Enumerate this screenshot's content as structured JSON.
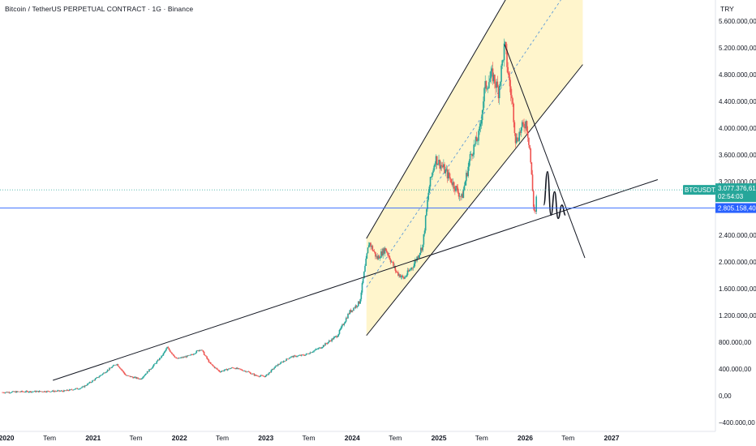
{
  "header": {
    "title": "Bitcoin / TetherUS PERPETUAL CONTRACT · 1G · Binance",
    "currency": "TRY"
  },
  "colors": {
    "up": "#26a69a",
    "down": "#ef5350",
    "channel_fill": "#fff5cc",
    "trendline": "#131722",
    "price_line": "#2962ff",
    "badge_green": "#26a69a",
    "badge_blue": "#2962ff"
  },
  "chart_data": {
    "type": "line",
    "symbol": "BTCUSDT.P",
    "y_axis": {
      "ticks": [
        "5.600.000,00",
        "5.200.000,00",
        "4.800.000,00",
        "4.400.000,00",
        "4.000.000,00",
        "3.600.000,00",
        "3.200.000,00",
        "2.400.000,00",
        "2.000.000,00",
        "1.600.000,00",
        "1.200.000,00",
        "800.000,00",
        "400.000,00",
        "0,00",
        "−400.000,00"
      ],
      "tick_values": [
        5600000,
        5200000,
        4800000,
        4400000,
        4000000,
        3600000,
        3200000,
        2400000,
        2000000,
        1600000,
        1200000,
        800000,
        400000,
        0,
        -400000
      ]
    },
    "x_axis": {
      "labels": [
        {
          "text": "2020",
          "date": "2020-01-01",
          "year": true
        },
        {
          "text": "Tem",
          "date": "2020-07-01",
          "year": false
        },
        {
          "text": "2021",
          "date": "2021-01-01",
          "year": true
        },
        {
          "text": "Tem",
          "date": "2021-07-01",
          "year": false
        },
        {
          "text": "2022",
          "date": "2022-01-01",
          "year": true
        },
        {
          "text": "Tem",
          "date": "2022-07-01",
          "year": false
        },
        {
          "text": "2023",
          "date": "2023-01-01",
          "year": true
        },
        {
          "text": "Tem",
          "date": "2023-07-01",
          "year": false
        },
        {
          "text": "2024",
          "date": "2024-01-01",
          "year": true
        },
        {
          "text": "Tem",
          "date": "2024-07-01",
          "year": false
        },
        {
          "text": "2025",
          "date": "2025-01-01",
          "year": true
        },
        {
          "text": "Tem",
          "date": "2025-07-01",
          "year": false
        },
        {
          "text": "2026",
          "date": "2026-01-01",
          "year": true
        },
        {
          "text": "Tem",
          "date": "2026-07-01",
          "year": false
        },
        {
          "text": "2027",
          "date": "2027-01-01",
          "year": true
        }
      ]
    },
    "price_series": [
      {
        "date": "2019-12-15",
        "value": 50000
      },
      {
        "date": "2020-03-01",
        "value": 60000
      },
      {
        "date": "2020-06-01",
        "value": 65000
      },
      {
        "date": "2020-09-01",
        "value": 70000
      },
      {
        "date": "2020-11-15",
        "value": 120000
      },
      {
        "date": "2021-01-15",
        "value": 260000
      },
      {
        "date": "2021-04-10",
        "value": 480000
      },
      {
        "date": "2021-05-20",
        "value": 300000
      },
      {
        "date": "2021-07-20",
        "value": 250000
      },
      {
        "date": "2021-09-05",
        "value": 420000
      },
      {
        "date": "2021-10-20",
        "value": 600000
      },
      {
        "date": "2021-11-10",
        "value": 720000
      },
      {
        "date": "2021-12-20",
        "value": 550000
      },
      {
        "date": "2022-02-15",
        "value": 600000
      },
      {
        "date": "2022-04-01",
        "value": 700000
      },
      {
        "date": "2022-05-10",
        "value": 480000
      },
      {
        "date": "2022-06-20",
        "value": 360000
      },
      {
        "date": "2022-08-15",
        "value": 420000
      },
      {
        "date": "2022-10-15",
        "value": 360000
      },
      {
        "date": "2022-11-20",
        "value": 300000
      },
      {
        "date": "2022-12-30",
        "value": 290000
      },
      {
        "date": "2023-02-15",
        "value": 450000
      },
      {
        "date": "2023-04-15",
        "value": 580000
      },
      {
        "date": "2023-06-15",
        "value": 610000
      },
      {
        "date": "2023-08-20",
        "value": 720000
      },
      {
        "date": "2023-10-30",
        "value": 900000
      },
      {
        "date": "2023-12-20",
        "value": 1250000
      },
      {
        "date": "2024-02-01",
        "value": 1400000
      },
      {
        "date": "2024-03-12",
        "value": 2300000
      },
      {
        "date": "2024-04-15",
        "value": 2050000
      },
      {
        "date": "2024-05-20",
        "value": 2200000
      },
      {
        "date": "2024-07-05",
        "value": 1850000
      },
      {
        "date": "2024-08-05",
        "value": 1750000
      },
      {
        "date": "2024-09-15",
        "value": 1950000
      },
      {
        "date": "2024-10-25",
        "value": 2250000
      },
      {
        "date": "2024-11-20",
        "value": 3100000
      },
      {
        "date": "2024-12-17",
        "value": 3550000
      },
      {
        "date": "2025-01-20",
        "value": 3400000
      },
      {
        "date": "2025-02-25",
        "value": 3200000
      },
      {
        "date": "2025-04-08",
        "value": 2950000
      },
      {
        "date": "2025-05-15",
        "value": 3600000
      },
      {
        "date": "2025-06-20",
        "value": 3900000
      },
      {
        "date": "2025-07-14",
        "value": 4600000
      },
      {
        "date": "2025-08-15",
        "value": 4800000
      },
      {
        "date": "2025-09-10",
        "value": 4550000
      },
      {
        "date": "2025-10-06",
        "value": 5250000
      },
      {
        "date": "2025-10-25",
        "value": 4700000
      },
      {
        "date": "2025-11-10",
        "value": 4300000
      },
      {
        "date": "2025-11-22",
        "value": 3800000
      },
      {
        "date": "2025-12-10",
        "value": 3950000
      },
      {
        "date": "2026-01-05",
        "value": 4100000
      },
      {
        "date": "2026-01-20",
        "value": 3700000
      },
      {
        "date": "2026-02-05",
        "value": 2850000
      },
      {
        "date": "2026-02-12",
        "value": 2700000
      },
      {
        "date": "2026-02-20",
        "value": 3077376
      }
    ],
    "channel": {
      "lower_start": {
        "date": "2024-03-01",
        "value": 900000
      },
      "lower_end": {
        "date": "2026-09-01",
        "value": 4950000
      },
      "upper_start": {
        "date": "2024-03-01",
        "value": 2350000
      },
      "upper_end": {
        "date": "2026-09-01",
        "value": 7900000
      },
      "mid_start": {
        "date": "2024-03-01",
        "value": 1620000
      },
      "mid_end": {
        "date": "2026-09-01",
        "value": 6400000
      }
    },
    "trendlines": [
      {
        "name": "long-term-support",
        "start": {
          "date": "2020-07-15",
          "value": 230000
        },
        "end": {
          "date": "2027-07-15",
          "value": 3230000
        }
      },
      {
        "name": "descending-resistance",
        "start": {
          "date": "2025-10-06",
          "value": 5250000
        },
        "end": {
          "date": "2026-09-10",
          "value": 2060000
        }
      }
    ],
    "projection": [
      {
        "date": "2026-03-20",
        "value": 2850000
      },
      {
        "date": "2026-04-05",
        "value": 3350000
      },
      {
        "date": "2026-04-20",
        "value": 2700000
      },
      {
        "date": "2026-05-05",
        "value": 3050000
      },
      {
        "date": "2026-05-20",
        "value": 2650000
      },
      {
        "date": "2026-06-05",
        "value": 2850000
      },
      {
        "date": "2026-06-20",
        "value": 2700000
      }
    ],
    "last_price": {
      "value": 3077376.61,
      "label": "3.077.376,61",
      "countdown": "02:54:03",
      "symbol": "BTCUSDT.P"
    },
    "horizontal_line": {
      "value": 2805158.4,
      "label": "2.805.158,40"
    },
    "grid": false,
    "legend": "none"
  }
}
